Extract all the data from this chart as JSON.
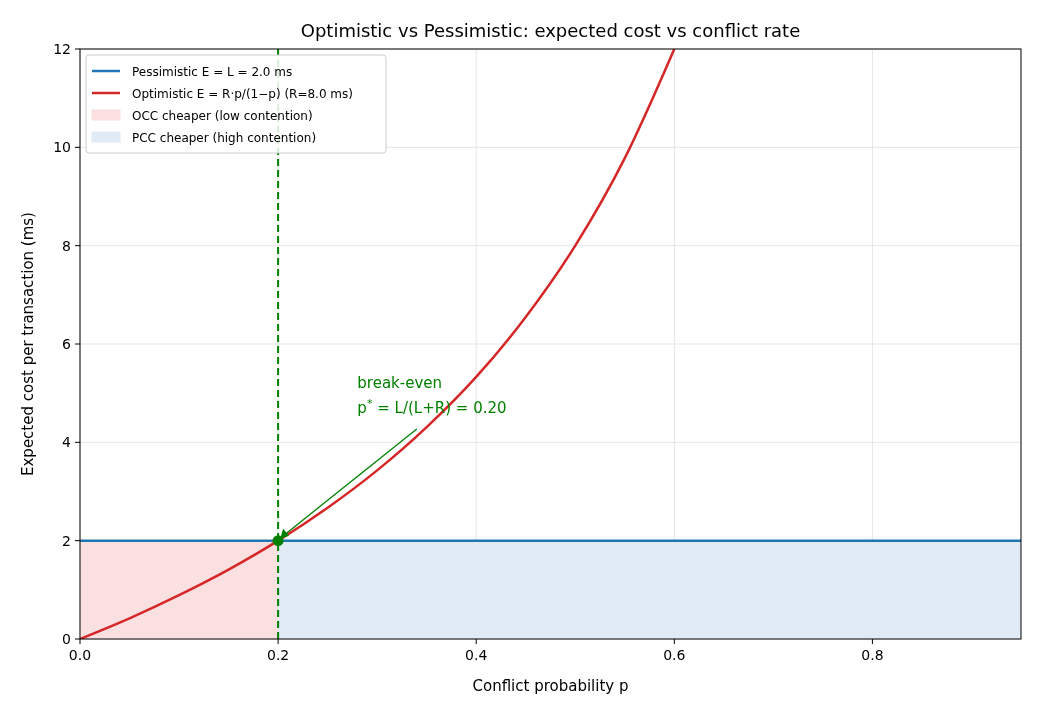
{
  "chart_data": {
    "type": "line",
    "title": "Optimistic vs Pessimistic: expected cost vs conflict rate",
    "xlabel": "Conflict probability  p",
    "ylabel": "Expected cost per transaction (ms)",
    "xlim": [
      0,
      0.95
    ],
    "ylim": [
      0,
      12
    ],
    "xticks": [
      {
        "value": 0,
        "label": "0.0"
      },
      {
        "value": 0.2,
        "label": "0.2"
      },
      {
        "value": 0.4,
        "label": "0.4"
      },
      {
        "value": 0.6,
        "label": "0.6"
      },
      {
        "value": 0.8,
        "label": "0.8"
      }
    ],
    "yticks": [
      0,
      2,
      4,
      6,
      8,
      10,
      12
    ],
    "grid": true,
    "legend": "top left",
    "series": [
      {
        "name": "Pessimistic  E = L = 2.0 ms",
        "color": "#1f77b4",
        "x": [
          0,
          0.95
        ],
        "values": [
          2,
          2
        ]
      },
      {
        "name": "Optimistic  E = R·p/(1−p)  (R=8.0 ms)",
        "color": "#d62728",
        "x": [
          0,
          0.05,
          0.1,
          0.15,
          0.2,
          0.25,
          0.3,
          0.35,
          0.4,
          0.45,
          0.5,
          0.55,
          0.6
        ],
        "values": [
          0,
          0.42,
          0.89,
          1.41,
          2,
          2.67,
          3.43,
          4.31,
          5.33,
          6.55,
          8,
          9.78,
          12
        ]
      },
      {
        "name": "OCC cheaper (low contention)",
        "type": "area",
        "color": "#fae0e1",
        "x": [
          0,
          0.2
        ],
        "values": [
          2,
          2
        ]
      },
      {
        "name": "PCC cheaper (high contention)",
        "type": "area",
        "color": "#e0ebf5",
        "x": [
          0.2,
          0.95
        ],
        "values": [
          2,
          2
        ]
      },
      {
        "type": "scatter",
        "color": "#008000",
        "x": [
          0.2
        ],
        "values": [
          2
        ],
        "marker": "circle"
      }
    ],
    "ref_lines": [
      {
        "axis": "x",
        "value": 0.2,
        "color": "#008000",
        "line_style": "dashed"
      }
    ],
    "annotations": [
      {
        "text": "break-even\np$^{*}$ = L/(L+R) = 0.20",
        "x": 0.2,
        "y": 2
      }
    ]
  }
}
